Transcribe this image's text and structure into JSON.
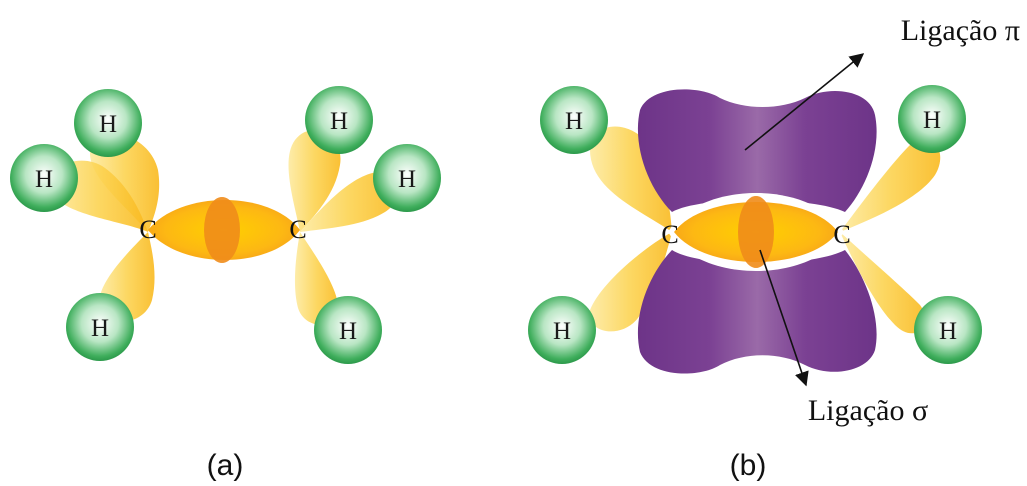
{
  "atoms": {
    "hydrogen": "H",
    "carbon": "C"
  },
  "annotations": {
    "pi_bond": "Ligação π",
    "sigma_bond": "Ligação σ"
  },
  "panels": {
    "a": "(a)",
    "b": "(b)"
  },
  "colors": {
    "sp2_orbital": "#fcc83a",
    "bond_core": "#f08c1a",
    "p_orbital": "#7c3f96",
    "hydrogen": "#34a853"
  }
}
